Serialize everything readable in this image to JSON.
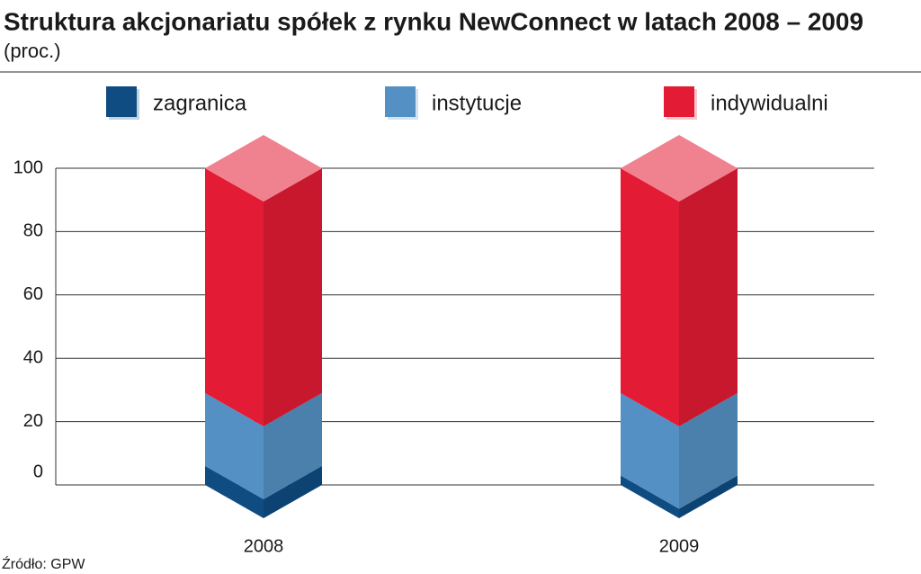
{
  "title": "Struktura akcjonariatu spółek z rynku NewConnect w latach 2008 – 2009",
  "subtitle": "(proc.)",
  "source": "Źródło: GPW",
  "chart_data": {
    "type": "bar",
    "stacked": true,
    "categories": [
      "2008",
      "2009"
    ],
    "series": [
      {
        "name": "zagranica",
        "color": "#0f4c81",
        "values": [
          6,
          3
        ]
      },
      {
        "name": "instytucje",
        "color": "#5590c4",
        "values": [
          23,
          26
        ]
      },
      {
        "name": "indywidualni",
        "color": "#e31b34",
        "values": [
          71,
          71
        ]
      }
    ],
    "ylim": [
      0,
      100
    ],
    "yticks": [
      0,
      20,
      40,
      60,
      80,
      100
    ],
    "grid": true
  }
}
